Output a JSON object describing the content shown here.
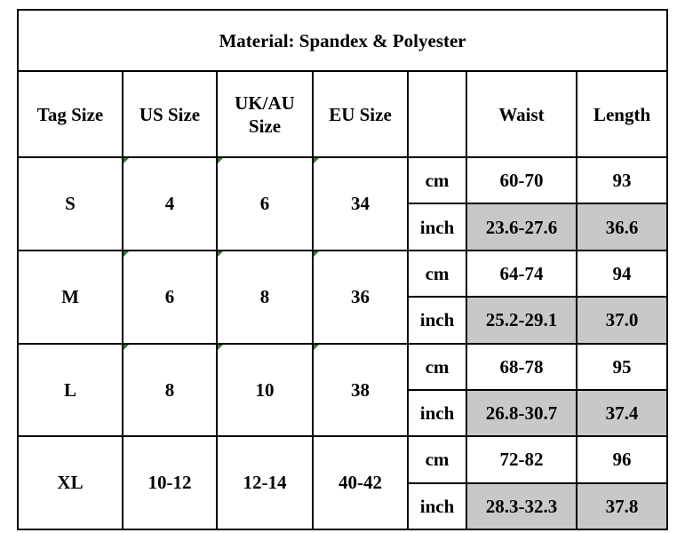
{
  "title": "Material: Spandex & Polyester",
  "headers": {
    "tag_size": "Tag Size",
    "us_size": "US Size",
    "uk_au_line1": "UK/AU",
    "uk_au_line2": "Size",
    "eu_size": "EU Size",
    "unit": "",
    "waist": "Waist",
    "length": "Length"
  },
  "colors": {
    "border": "#000000",
    "inch_highlight": "#c8c8c8",
    "corner_marker": "#2f7d32"
  },
  "rows": [
    {
      "tag": "S",
      "us": "4",
      "uk_au": "6",
      "eu": "34",
      "cm_label": "cm",
      "cm_waist": "60-70",
      "cm_length": "93",
      "inch_label": "inch",
      "inch_waist": "23.6-27.6",
      "inch_length": "36.6"
    },
    {
      "tag": "M",
      "us": "6",
      "uk_au": "8",
      "eu": "36",
      "cm_label": "cm",
      "cm_waist": "64-74",
      "cm_length": "94",
      "inch_label": "inch",
      "inch_waist": "25.2-29.1",
      "inch_length": "37.0"
    },
    {
      "tag": "L",
      "us": "8",
      "uk_au": "10",
      "eu": "38",
      "cm_label": "cm",
      "cm_waist": "68-78",
      "cm_length": "95",
      "inch_label": "inch",
      "inch_waist": "26.8-30.7",
      "inch_length": "37.4"
    },
    {
      "tag": "XL",
      "us": "10-12",
      "uk_au": "12-14",
      "eu": "40-42",
      "cm_label": "cm",
      "cm_waist": "72-82",
      "cm_length": "96",
      "inch_label": "inch",
      "inch_waist": "28.3-32.3",
      "inch_length": "37.8"
    }
  ]
}
